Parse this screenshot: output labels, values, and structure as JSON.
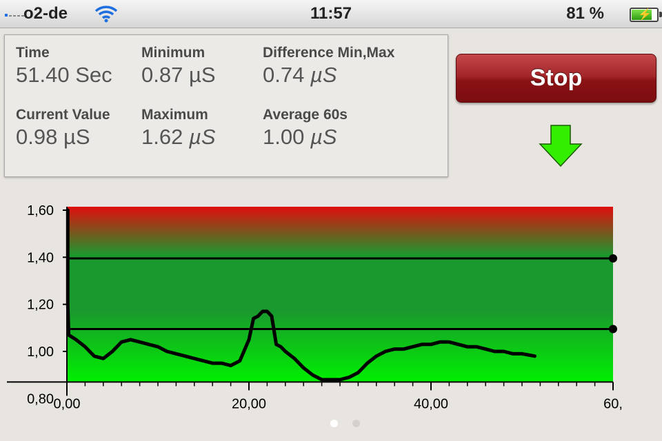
{
  "status_bar": {
    "carrier": "o2-de",
    "time": "11:57",
    "battery": "81 %",
    "battery_level": 0.81
  },
  "stats": {
    "time_label": "Time",
    "time_value": "51.40 Sec",
    "minimum_label": "Minimum",
    "minimum_number": "0.87",
    "minimum_unit": "µS",
    "difference_label": "Difference Min,Max",
    "difference_number": "0.74",
    "difference_unit": "µS",
    "current_label": "Current Value",
    "current_number": "0.98",
    "current_unit": "µS",
    "maximum_label": "Maximum",
    "maximum_number": "1.62",
    "maximum_unit": "µS",
    "average_label": "Average 60s",
    "average_number": "1.00",
    "average_unit": "µS"
  },
  "controls": {
    "stop_label": "Stop",
    "arrow_icon": "down-arrow-icon",
    "arrow_color": "#33ee00"
  },
  "pager": {
    "pages": 2,
    "active": 0
  },
  "chart_data": {
    "type": "line",
    "x_tick_labels": [
      "0,00",
      "20,00",
      "40,00",
      "60,"
    ],
    "y_tick_labels": [
      "0,80",
      "1,00",
      "1,20",
      "1,40",
      "1,60"
    ],
    "x_ticks": [
      0,
      20,
      40,
      60
    ],
    "y_ticks": [
      0.8,
      1.0,
      1.2,
      1.4,
      1.6
    ],
    "xlim": [
      0,
      60
    ],
    "ylim": [
      0.8,
      1.6
    ],
    "y_plot_bottom": 0.87,
    "thresholds": [
      1.395,
      1.095
    ],
    "colors": {
      "top": "#e00d0d",
      "middle": "#1a9a2e",
      "bottom": "#00f000",
      "line": "#000000"
    },
    "series": [
      {
        "x": [
          0.1,
          0.1,
          0.2,
          1,
          2,
          3,
          4,
          5,
          6,
          7,
          8,
          9,
          10,
          11,
          12,
          13,
          14,
          15,
          16,
          17,
          18,
          19,
          20,
          20.5,
          21,
          21.5,
          22,
          22.5,
          23,
          23.5,
          24,
          25,
          26,
          27,
          28,
          28.5,
          29,
          30,
          31,
          32,
          33,
          34,
          35,
          36,
          37,
          38,
          39,
          40,
          41,
          42,
          43,
          44,
          45,
          46,
          47,
          48,
          49,
          50,
          51.4
        ],
        "y": [
          1.6,
          1.2,
          1.07,
          1.05,
          1.02,
          0.98,
          0.97,
          1.0,
          1.04,
          1.05,
          1.04,
          1.03,
          1.02,
          1.0,
          0.99,
          0.98,
          0.97,
          0.96,
          0.95,
          0.95,
          0.94,
          0.96,
          1.05,
          1.14,
          1.15,
          1.17,
          1.17,
          1.15,
          1.03,
          1.02,
          1.0,
          0.97,
          0.93,
          0.9,
          0.88,
          0.88,
          0.88,
          0.88,
          0.89,
          0.91,
          0.95,
          0.98,
          1.0,
          1.01,
          1.01,
          1.02,
          1.03,
          1.03,
          1.04,
          1.04,
          1.03,
          1.02,
          1.02,
          1.01,
          1.0,
          1.0,
          0.99,
          0.99,
          0.98
        ]
      }
    ]
  }
}
